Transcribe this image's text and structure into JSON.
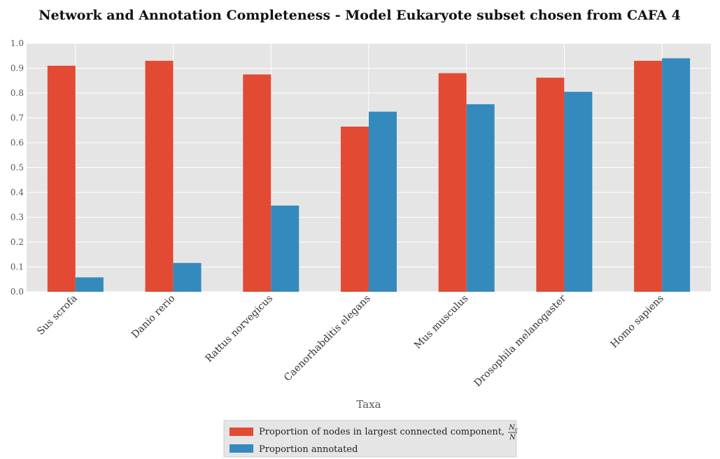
{
  "chart_data": {
    "type": "bar",
    "title": "Network and Annotation Completeness - Model Eukaryote subset chosen from CAFA 4",
    "xlabel": "Taxa",
    "ylabel": "",
    "ylim": [
      0,
      1.0
    ],
    "yticks": [
      "0.0",
      "0.1",
      "0.2",
      "0.3",
      "0.4",
      "0.5",
      "0.6",
      "0.7",
      "0.8",
      "0.9",
      "1.0"
    ],
    "categories": [
      "Sus scrofa",
      "Danio rerio",
      "Rattus norvegicus",
      "Caenorhabditis elegans",
      "Mus musculus",
      "Drosophila melanogaster",
      "Homo sapiens"
    ],
    "series": [
      {
        "name": "Proportion of nodes in largest connected component, ",
        "name_math": {
          "numerator": "N",
          "numerator_sub": "c",
          "denominator": "N"
        },
        "color": "#e24a33",
        "values": [
          0.91,
          0.93,
          0.875,
          0.665,
          0.88,
          0.862,
          0.93
        ]
      },
      {
        "name": "Proportion annotated",
        "color": "#348abd",
        "values": [
          0.058,
          0.116,
          0.347,
          0.725,
          0.755,
          0.805,
          0.94
        ]
      }
    ],
    "grid": true,
    "legend_position": "bottom-center",
    "background": "#e5e5e5"
  }
}
